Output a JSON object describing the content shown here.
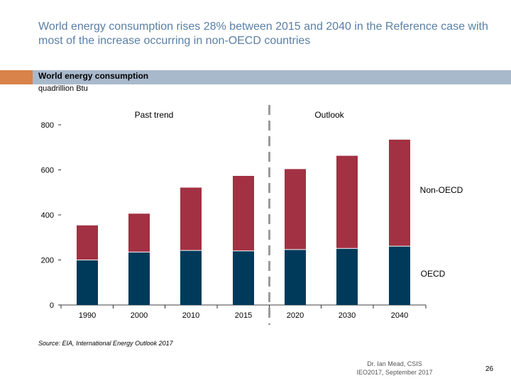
{
  "slide": {
    "title": "World energy consumption rises 28% between 2015 and 2040 in the Reference case with most of the increase occurring in non-OECD countries",
    "source": "Source: EIA, International Energy Outlook 2017",
    "footer_line1": "Dr. Ian Mead, CSIS",
    "footer_line2": "IEO2017, September 2017",
    "page_number": "26"
  },
  "colors": {
    "oecd": "#003a5a",
    "non_oecd": "#a23143",
    "divider": "#9b9b9b",
    "title_text": "#5a7fa6",
    "title_bar": "#a9b9cc",
    "title_bar_accent": "#d9824a"
  },
  "chart_data": {
    "type": "bar",
    "stacked": true,
    "title": "World energy consumption",
    "ylabel": "quadrillion Btu",
    "xlabel": "",
    "categories": [
      "1990",
      "2000",
      "2010",
      "2015",
      "2020",
      "2030",
      "2040"
    ],
    "series": [
      {
        "name": "OECD",
        "values": [
          200,
          235,
          242,
          240,
          246,
          251,
          261
        ]
      },
      {
        "name": "Non-OECD",
        "values": [
          155,
          172,
          281,
          335,
          359,
          413,
          475
        ]
      }
    ],
    "yticks": [
      0,
      200,
      400,
      600,
      800
    ],
    "ylim": [
      0,
      800
    ],
    "region_labels": [
      "Past trend",
      "Outlook"
    ],
    "divider_after_category": "2015",
    "grid": false
  }
}
